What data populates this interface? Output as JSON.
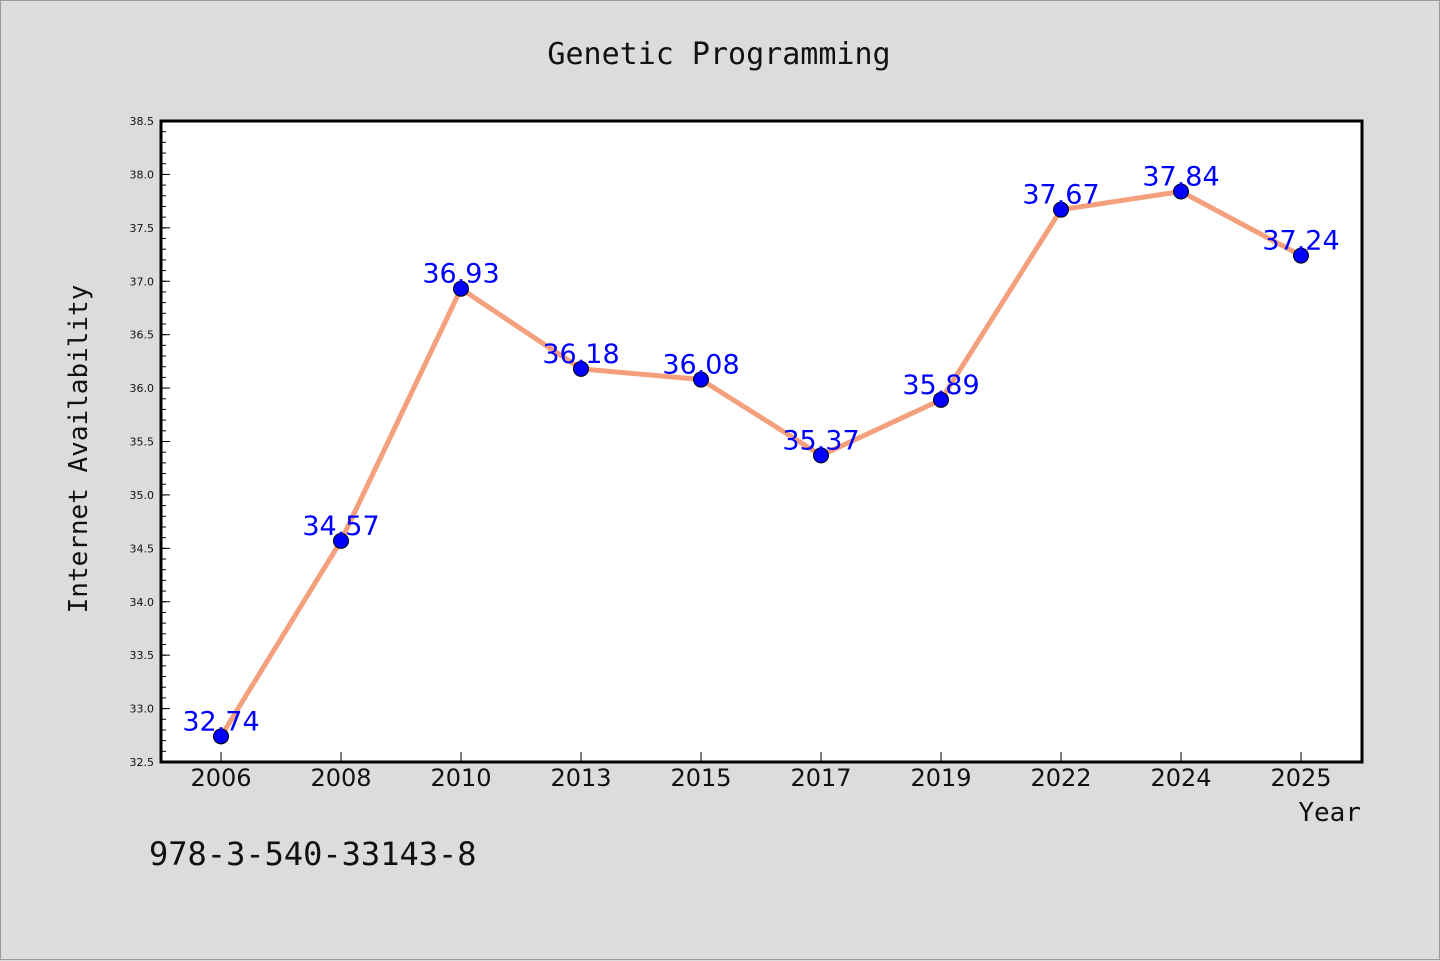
{
  "chart_data": {
    "type": "line",
    "title": "Genetic Programming",
    "xlabel": "Year",
    "ylabel": "Internet Availability",
    "categories": [
      "2006",
      "2008",
      "2010",
      "2013",
      "2015",
      "2017",
      "2019",
      "2022",
      "2024",
      "2025"
    ],
    "series": [
      {
        "values": [
          32.74,
          34.57,
          36.93,
          36.18,
          36.08,
          35.37,
          35.89,
          37.67,
          37.84,
          37.24
        ]
      }
    ],
    "data_labels": [
      "32.74",
      "34.57",
      "36.93",
      "36.18",
      "36.08",
      "35.37",
      "35.89",
      "37.67",
      "37.84",
      "37.24"
    ],
    "ylim": [
      32.5,
      38.5
    ],
    "yticks": [
      "32.5",
      "33.0",
      "33.5",
      "34.0",
      "34.5",
      "35.0",
      "35.5",
      "36.0",
      "36.5",
      "37.0",
      "37.5",
      "38.0",
      "38.5"
    ],
    "grid": false,
    "legend": "none",
    "colors": {
      "line": "#f4a07c",
      "marker": "#0000ff",
      "data_label": "#0000ff",
      "background": "#dcdcdc",
      "plot_area": "#ffffff"
    }
  },
  "footer": {
    "text": "978-3-540-33143-8"
  }
}
